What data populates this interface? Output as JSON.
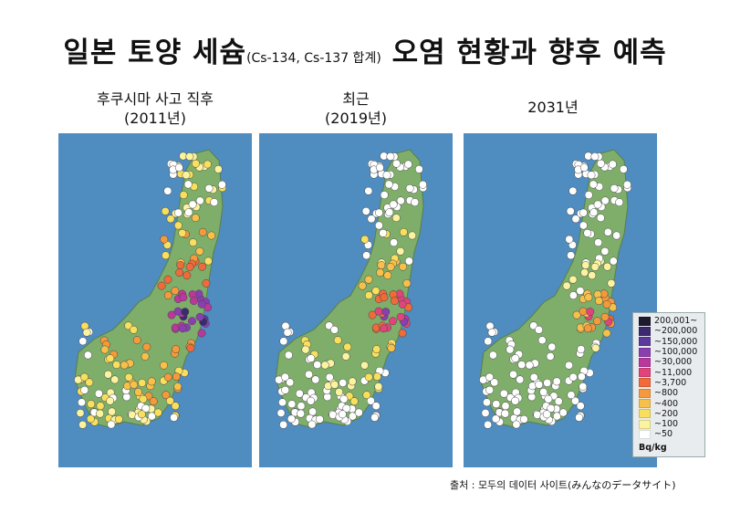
{
  "title": {
    "main": "일본 토양 세슘",
    "sub": "(Cs-134, Cs-137 합계)",
    "tail": "오염 현황과 향후 예측"
  },
  "panels": [
    {
      "caption_line1": "후쿠시마 사고 직후",
      "caption_line2": "(2011년)",
      "scenario": 0
    },
    {
      "caption_line1": "최근",
      "caption_line2": "(2019년)",
      "scenario": 1
    },
    {
      "caption_line1": "2031년",
      "caption_line2": "",
      "scenario": 2
    }
  ],
  "legend": {
    "items": [
      {
        "label": "200,001~",
        "color": "#1e1b2e"
      },
      {
        "label": "~200,000",
        "color": "#3b2a6e"
      },
      {
        "label": "~150,000",
        "color": "#5b3a9e"
      },
      {
        "label": "~100,000",
        "color": "#8a3fb0"
      },
      {
        "label": "~30,000",
        "color": "#b8399b"
      },
      {
        "label": "~11,000",
        "color": "#e0447a"
      },
      {
        "label": "~3,700",
        "color": "#f06a3a"
      },
      {
        "label": "~800",
        "color": "#f59a3c"
      },
      {
        "label": "~400",
        "color": "#f7c04a"
      },
      {
        "label": "~200",
        "color": "#f9df5e"
      },
      {
        "label": "~100",
        "color": "#fbf3a0"
      },
      {
        "label": "~50",
        "color": "#ffffff"
      }
    ],
    "unit": "Bq/kg"
  },
  "source": "출처 : 모두의 데이터 사이트(みんなのデータサイト)"
}
